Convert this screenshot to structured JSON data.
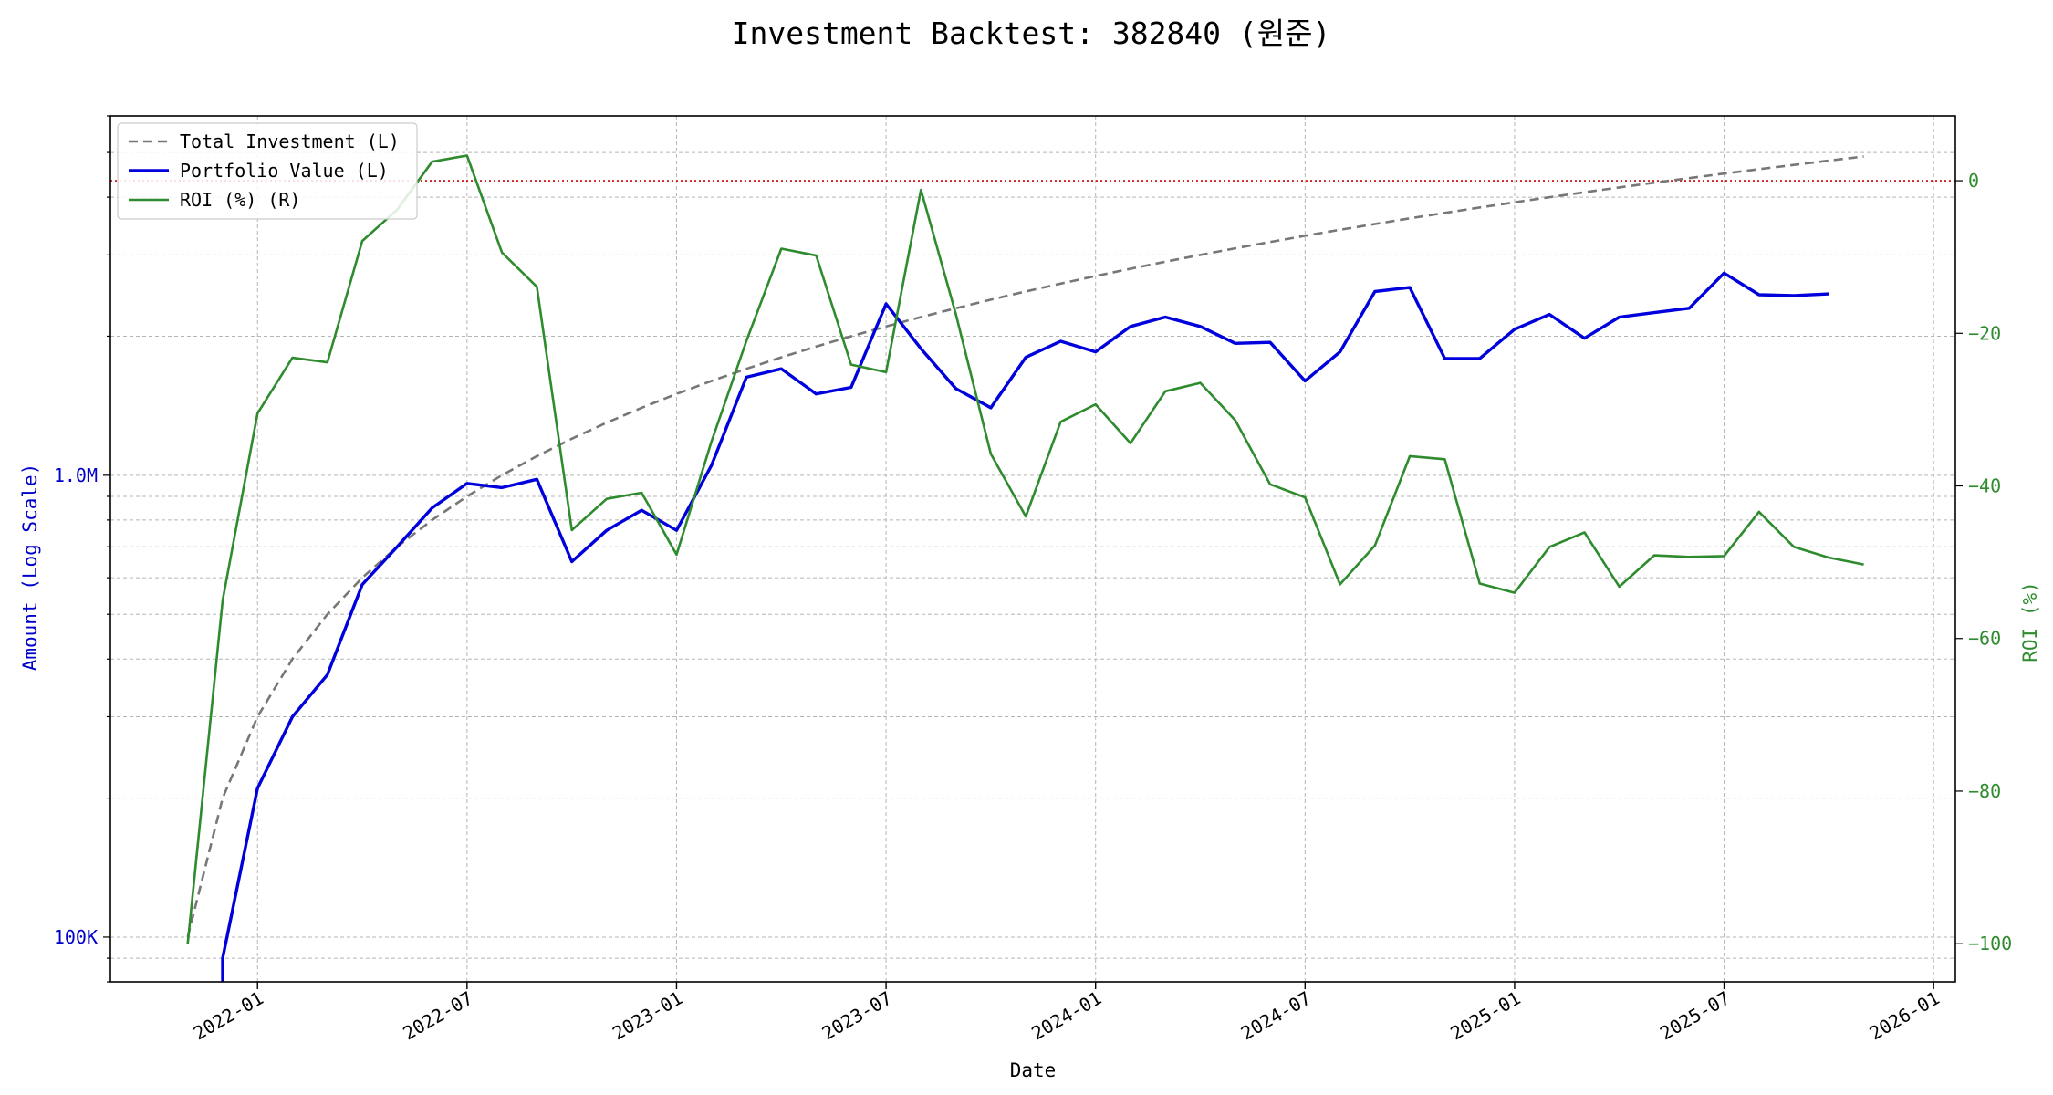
{
  "chart_data": {
    "type": "line",
    "title": "Investment Backtest: 382840 (원준)",
    "xlabel": "Date",
    "ylabel_left": "Amount (Log Scale)",
    "ylabel_right": "ROI (%)",
    "left_axis": {
      "scale": "log",
      "ylim": [
        80000,
        6000000
      ],
      "ticks": [
        100000,
        1000000
      ],
      "tick_labels": [
        "100K",
        "1.0M"
      ],
      "color": "#0000cc"
    },
    "right_axis": {
      "scale": "linear",
      "ylim": [
        -105,
        8.5
      ],
      "ticks": [
        0,
        -20,
        -40,
        -60,
        -80,
        -100
      ],
      "tick_labels": [
        "0",
        "−20",
        "−40",
        "−60",
        "−80",
        "−100"
      ],
      "color": "#2e8b2e"
    },
    "x_axis": {
      "range": [
        "2021-08-25",
        "2026-01-20"
      ],
      "ticks": [
        "2022-01",
        "2022-07",
        "2023-01",
        "2023-07",
        "2024-01",
        "2024-07",
        "2025-01",
        "2025-07",
        "2026-01"
      ]
    },
    "grid": true,
    "legend_position": "top-left",
    "reference_line": {
      "axis": "right",
      "value": 0,
      "color": "#cc0000",
      "style": "dotted"
    },
    "x": [
      "2021-11",
      "2021-12",
      "2022-01",
      "2022-02",
      "2022-03",
      "2022-04",
      "2022-05",
      "2022-06",
      "2022-07",
      "2022-08",
      "2022-09",
      "2022-10",
      "2022-11",
      "2022-12",
      "2023-01",
      "2023-02",
      "2023-03",
      "2023-04",
      "2023-05",
      "2023-06",
      "2023-07",
      "2023-08",
      "2023-09",
      "2023-10",
      "2023-11",
      "2023-12",
      "2024-01",
      "2024-02",
      "2024-03",
      "2024-04",
      "2024-05",
      "2024-06",
      "2024-07",
      "2024-08",
      "2024-09",
      "2024-10",
      "2024-11",
      "2024-12",
      "2025-01",
      "2025-02",
      "2025-03",
      "2025-04",
      "2025-05",
      "2025-06",
      "2025-07",
      "2025-08",
      "2025-09",
      "2025-10",
      "2025-11"
    ],
    "series": [
      {
        "name": "Total Investment (L)",
        "axis": "left",
        "color": "#777777",
        "style": "dashed",
        "values": [
          100000,
          200000,
          300000,
          400000,
          500000,
          600000,
          700000,
          800000,
          900000,
          1000000,
          1100000,
          1200000,
          1300000,
          1400000,
          1500000,
          1600000,
          1700000,
          1800000,
          1900000,
          2000000,
          2100000,
          2200000,
          2300000,
          2400000,
          2500000,
          2600000,
          2700000,
          2800000,
          2900000,
          3000000,
          3100000,
          3200000,
          3300000,
          3400000,
          3500000,
          3600000,
          3700000,
          3800000,
          3900000,
          4000000,
          4100000,
          4200000,
          4300000,
          4400000,
          4500000,
          4600000,
          4700000,
          4800000,
          4900000
        ]
      },
      {
        "name": "Portfolio Value (L)",
        "axis": "left",
        "color": "#0000dd",
        "style": "solid",
        "values": [
          null,
          90000,
          210000,
          300000,
          370000,
          580000,
          700000,
          850000,
          960000,
          940000,
          980000,
          650000,
          760000,
          840000,
          760000,
          1050000,
          1630000,
          1700000,
          1500000,
          1550000,
          2350000,
          1880000,
          1540000,
          1400000,
          1800000,
          1950000,
          1850000,
          2100000,
          2200000,
          2100000,
          1930000,
          1940000,
          1600000,
          1850000,
          2500000,
          2550000,
          1790000,
          1790000,
          2070000,
          2230000,
          1980000,
          2200000,
          2250000,
          2300000,
          2740000,
          2460000,
          2450000,
          2470000,
          null
        ]
      },
      {
        "name": "ROI (%) (R)",
        "axis": "right",
        "color": "#2e8b2e",
        "style": "solid",
        "values": [
          -100,
          -55,
          -30.5,
          -23.2,
          -23.8,
          -7.9,
          -3.8,
          2.5,
          3.3,
          -9.4,
          -13.9,
          -45.8,
          -41.7,
          -40.9,
          -49,
          -34.2,
          -21,
          -8.9,
          -9.8,
          -24.1,
          -25.1,
          -1.2,
          -17.5,
          -35.8,
          -44,
          -31.6,
          -29.3,
          -34.4,
          -27.6,
          -26.5,
          -31.4,
          -39.8,
          -41.5,
          -52.9,
          -47.8,
          -36.1,
          -36.5,
          -52.8,
          -54,
          -48,
          -46.1,
          -53.2,
          -49.1,
          -49.3,
          -49.2,
          -43.4,
          -48,
          -49.4,
          -50.3
        ]
      }
    ]
  }
}
